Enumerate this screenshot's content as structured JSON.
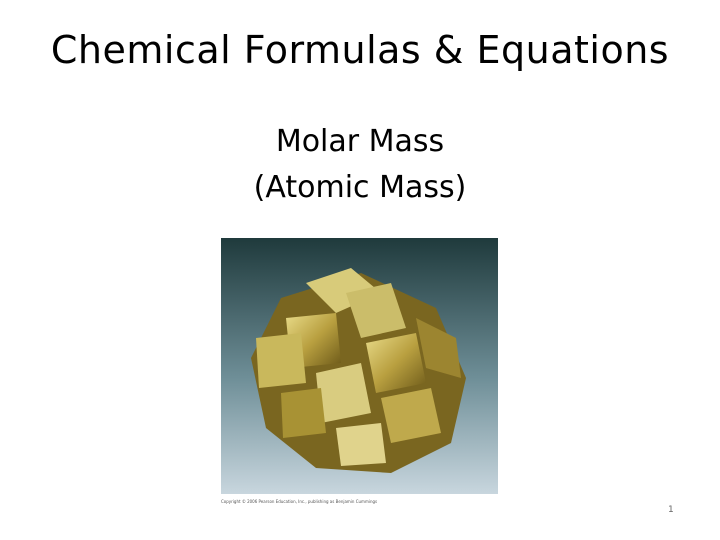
{
  "slide": {
    "title": "Chemical Formulas & Equations",
    "subtitle": [
      "Molar Mass",
      "(Atomic Mass)"
    ],
    "image_caption": "Copyright © 2006 Pearson Education, Inc., publishing as Benjamin Cummings",
    "page_number": "1"
  }
}
